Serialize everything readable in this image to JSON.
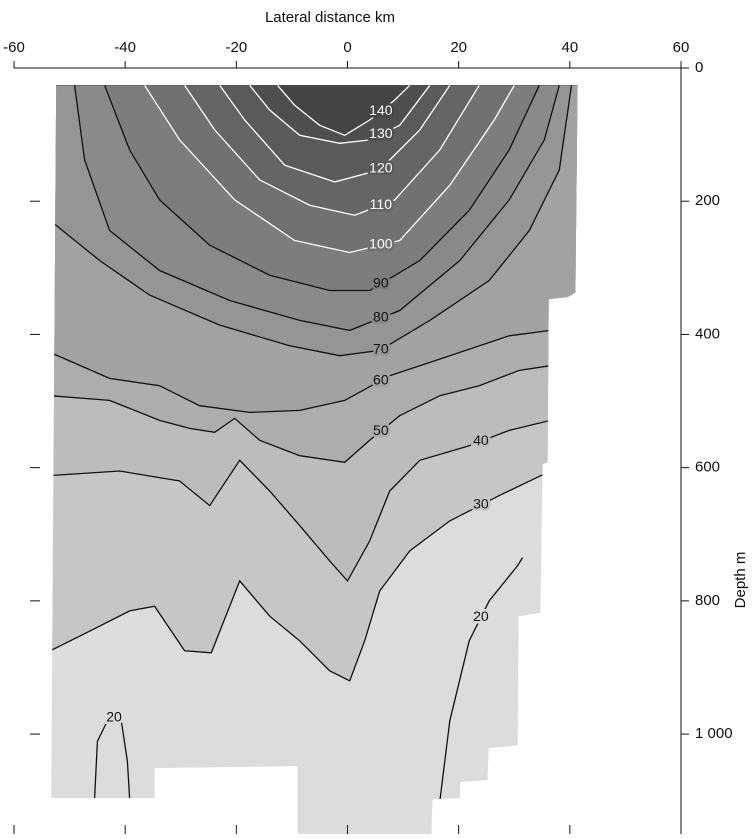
{
  "chart_data": {
    "type": "contour",
    "title": "Lateral distance km",
    "y_label": "Depth m",
    "xlim": [
      -60,
      60
    ],
    "xticks": [
      -60,
      -40,
      -20,
      0,
      20,
      40,
      60
    ],
    "ylim": [
      0,
      1150
    ],
    "yticks": [
      0,
      200,
      400,
      600,
      800,
      {
        "value": 1000,
        "label": "1 000"
      }
    ],
    "y_inverted": true,
    "domain": {
      "color": "#dcdcdc",
      "x": [
        -52.4,
        41.4,
        41.0,
        39.6,
        36.2,
        36.0,
        35.1,
        34.7,
        30.8,
        30.6,
        25.4,
        25.2,
        20.3,
        20.2,
        15.3,
        15.1,
        -9.0,
        -9.0,
        -34.7,
        -34.7,
        -53.3
      ],
      "y": [
        26,
        26,
        337,
        344,
        347,
        592,
        595,
        818,
        823,
        1017,
        1021,
        1069,
        1072,
        1096,
        1098,
        1150,
        1150,
        1048,
        1051,
        1096,
        1096
      ]
    },
    "contours": [
      {
        "level": 30,
        "line_color": "#111111",
        "fill": "#c6c6c6",
        "x": [
          -53.5,
          -48.2,
          -39.2,
          -34.7,
          -29.3,
          -24.5,
          -19.4,
          -14.0,
          -8.6,
          -3.2,
          0.4,
          3.1,
          5.8,
          11.2,
          18.4,
          27.3,
          36.5
        ],
        "y": [
          875,
          853,
          815,
          808,
          875,
          878,
          770,
          823,
          860,
          905,
          920,
          860,
          785,
          725,
          680,
          642,
          605
        ]
      },
      {
        "level": 40,
        "line_color": "#111111",
        "fill": "#bcbcbc",
        "x": [
          -53.5,
          -41.0,
          -30.2,
          -24.8,
          -19.4,
          -14.0,
          -8.6,
          -3.2,
          0.0,
          4.0,
          7.6,
          13.0,
          21.9,
          29.1,
          36.5
        ],
        "y": [
          612,
          605,
          620,
          657,
          589,
          635,
          687,
          740,
          770,
          710,
          635,
          589,
          567,
          544,
          529
        ]
      },
      {
        "level": 50,
        "line_color": "#111111",
        "fill": "#adadad",
        "x": [
          -53.5,
          -42.8,
          -33.8,
          -28.4,
          -23.9,
          -20.3,
          -15.8,
          -8.6,
          -0.5,
          4.0,
          9.4,
          16.6,
          23.7,
          30.9,
          36.5
        ],
        "y": [
          492,
          499,
          529,
          541,
          547,
          526,
          559,
          582,
          592,
          559,
          522,
          492,
          477,
          454,
          447
        ]
      },
      {
        "level": 60,
        "line_color": "#111111",
        "fill": "#a2a2a2",
        "x": [
          -53.5,
          -42.8,
          -33.8,
          -26.6,
          -17.6,
          -8.6,
          -0.5,
          7.6,
          18.4,
          29.1,
          36.5
        ],
        "y": [
          427,
          466,
          477,
          507,
          517,
          514,
          499,
          462,
          432,
          402,
          394
        ]
      },
      {
        "level": 70,
        "line_color": "#111111",
        "fill": "#959595",
        "x": [
          -53.5,
          -44.6,
          -35.6,
          -23.0,
          -10.4,
          -1.4,
          5.8,
          14.8,
          25.5,
          32.7,
          38.1,
          40.3
        ],
        "y": [
          229,
          289,
          341,
          386,
          417,
          432,
          424,
          379,
          319,
          244,
          153,
          26
        ]
      },
      {
        "level": 80,
        "line_color": "#111111",
        "fill": "#8a8a8a",
        "x": [
          -49.1,
          -47.3,
          -42.8,
          -33.8,
          -21.2,
          -8.6,
          0.4,
          9.4,
          20.2,
          29.1,
          35.4,
          38.1
        ],
        "y": [
          26,
          138,
          244,
          304,
          349,
          379,
          394,
          364,
          289,
          198,
          108,
          26
        ]
      },
      {
        "level": 90,
        "line_color": "#111111",
        "fill": "#7d7d7d",
        "x": [
          -43.7,
          -39.2,
          -33.8,
          -24.8,
          -14.0,
          -3.2,
          4.0,
          13.0,
          21.9,
          29.1,
          34.5
        ],
        "y": [
          26,
          123,
          198,
          266,
          311,
          334,
          334,
          289,
          214,
          123,
          26
        ]
      },
      {
        "level": 100,
        "line_color": "#ffffff",
        "fill": "#717171",
        "x": [
          -36.5,
          -30.2,
          -20.3,
          -9.5,
          0.4,
          9.4,
          18.4,
          26.4,
          30.0
        ],
        "y": [
          26,
          108,
          198,
          259,
          277,
          259,
          176,
          78,
          26
        ]
      },
      {
        "level": 110,
        "line_color": "#ffffff",
        "fill": "#656565",
        "x": [
          -29.3,
          -23.9,
          -15.8,
          -6.8,
          1.3,
          8.5,
          16.6,
          23.7
        ],
        "y": [
          26,
          93,
          168,
          206,
          221,
          198,
          123,
          26
        ]
      },
      {
        "level": 120,
        "line_color": "#ffffff",
        "fill": "#5a5a5a",
        "x": [
          -23.0,
          -18.5,
          -11.3,
          -2.3,
          5.8,
          13.0,
          18.4
        ],
        "y": [
          26,
          78,
          146,
          171,
          153,
          93,
          26
        ]
      },
      {
        "level": 130,
        "line_color": "#ffffff",
        "fill": "#4e4e4e",
        "x": [
          -17.6,
          -14.0,
          -8.6,
          -1.4,
          4.0,
          9.4,
          14.8
        ],
        "y": [
          26,
          63,
          101,
          113,
          108,
          86,
          26
        ]
      },
      {
        "level": 140,
        "line_color": "#ffffff",
        "fill": "#444444",
        "x": [
          -12.6,
          -9.5,
          -5.0,
          -0.5,
          4.0,
          8.5,
          11.2
        ],
        "y": [
          26,
          56,
          86,
          101,
          78,
          48,
          26
        ]
      },
      {
        "level": 20,
        "line_color": "#111111",
        "x": [
          16.6,
          18.4,
          21.9,
          25.5,
          30.6,
          31.5
        ],
        "y": [
          1101,
          980,
          860,
          800,
          747,
          735
        ]
      },
      {
        "level": 20,
        "line_color": "#111111",
        "x": [
          -45.5,
          -45.0,
          -42.8,
          -40.7,
          -39.6,
          -39.2
        ],
        "y": [
          1096,
          1011,
          973,
          980,
          1041,
          1096
        ]
      }
    ]
  }
}
